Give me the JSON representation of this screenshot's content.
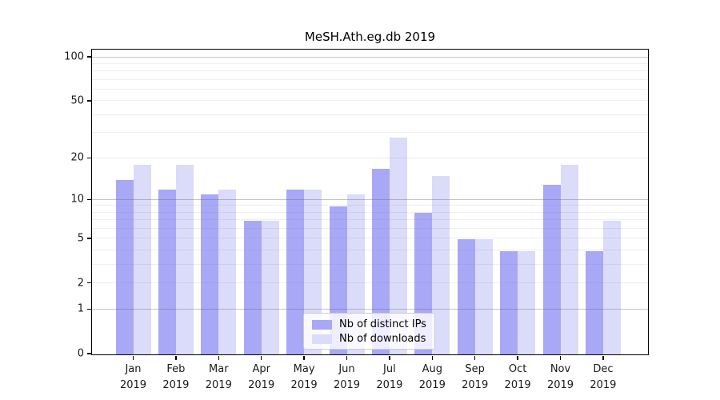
{
  "chart_data": {
    "type": "bar",
    "title": "MeSH.Ath.eg.db 2019",
    "categories": [
      "Jan",
      "Feb",
      "Mar",
      "Apr",
      "May",
      "Jun",
      "Jul",
      "Aug",
      "Sep",
      "Oct",
      "Nov",
      "Dec"
    ],
    "category_year": "2019",
    "series": [
      {
        "name": "Nb of distinct IPs",
        "color": "#a8a8f7",
        "values": [
          14,
          12,
          11,
          7,
          12,
          9,
          17,
          8,
          5,
          4,
          13,
          4
        ]
      },
      {
        "name": "Nb of downloads",
        "color": "#dbdbfa",
        "values": [
          18,
          18,
          12,
          7,
          12,
          11,
          28,
          15,
          5,
          4,
          18,
          7
        ]
      }
    ],
    "yscale": "log1p",
    "ylim": [
      0,
      112
    ],
    "yticks": [
      0,
      1,
      2,
      5,
      10,
      20,
      50,
      100
    ],
    "major_gridlines": [
      1,
      10,
      100
    ],
    "minor_gridlines": [
      2,
      3,
      4,
      5,
      6,
      7,
      8,
      9,
      20,
      30,
      40,
      50,
      60,
      70,
      80,
      90
    ],
    "grid": true,
    "xlabel": "",
    "ylabel": "",
    "legend_position": "lower-center-inside"
  }
}
